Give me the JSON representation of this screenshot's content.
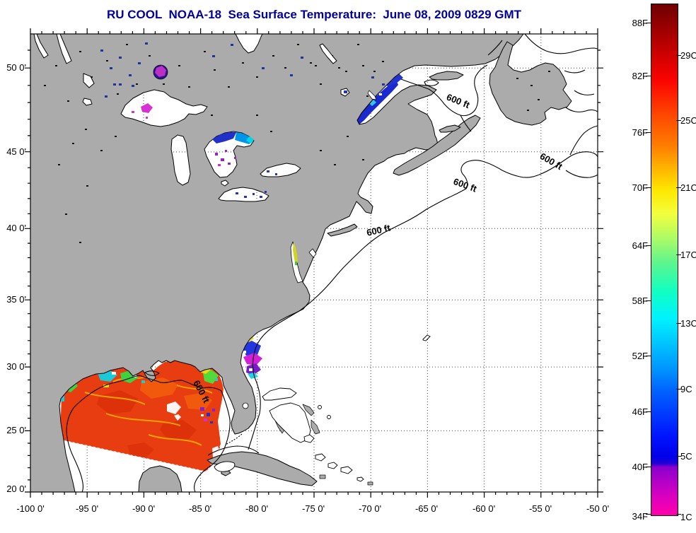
{
  "title": "RU COOL  NOAA-18  Sea Surface Temperature:  June 08, 2009 0829 GMT",
  "axes": {
    "lat_labels": [
      "50 0'",
      "45 0'",
      "40 0'",
      "35 0'",
      "30 0'",
      "25 0'",
      "20 0'"
    ],
    "lon_labels": [
      "-100 0'",
      "-95 0'",
      "-90 0'",
      "-85 0'",
      "-80 0'",
      "-75 0'",
      "-70 0'",
      "-65 0'",
      "-60 0'",
      "-55 0'",
      "-50 0'"
    ]
  },
  "map": {
    "contour_labels": [
      "600 ft",
      "600 ft",
      "600 ft",
      "600 ft",
      "600 ft"
    ],
    "land_color": "#ABABAB",
    "ocean_color": "#FFFFFF",
    "sst_warm_color": "#E83D10",
    "title_color": "#00009C"
  },
  "colorbar": {
    "f_labels": [
      "88F",
      "82F",
      "76F",
      "70F",
      "64F",
      "58F",
      "52F",
      "46F",
      "40F",
      "34F"
    ],
    "c_labels": [
      "29C",
      "25C",
      "21C",
      "17C",
      "13C",
      "9C",
      "5C",
      "1C"
    ],
    "top_color": "#6E0000",
    "bottom_color": "#FF00AA"
  }
}
